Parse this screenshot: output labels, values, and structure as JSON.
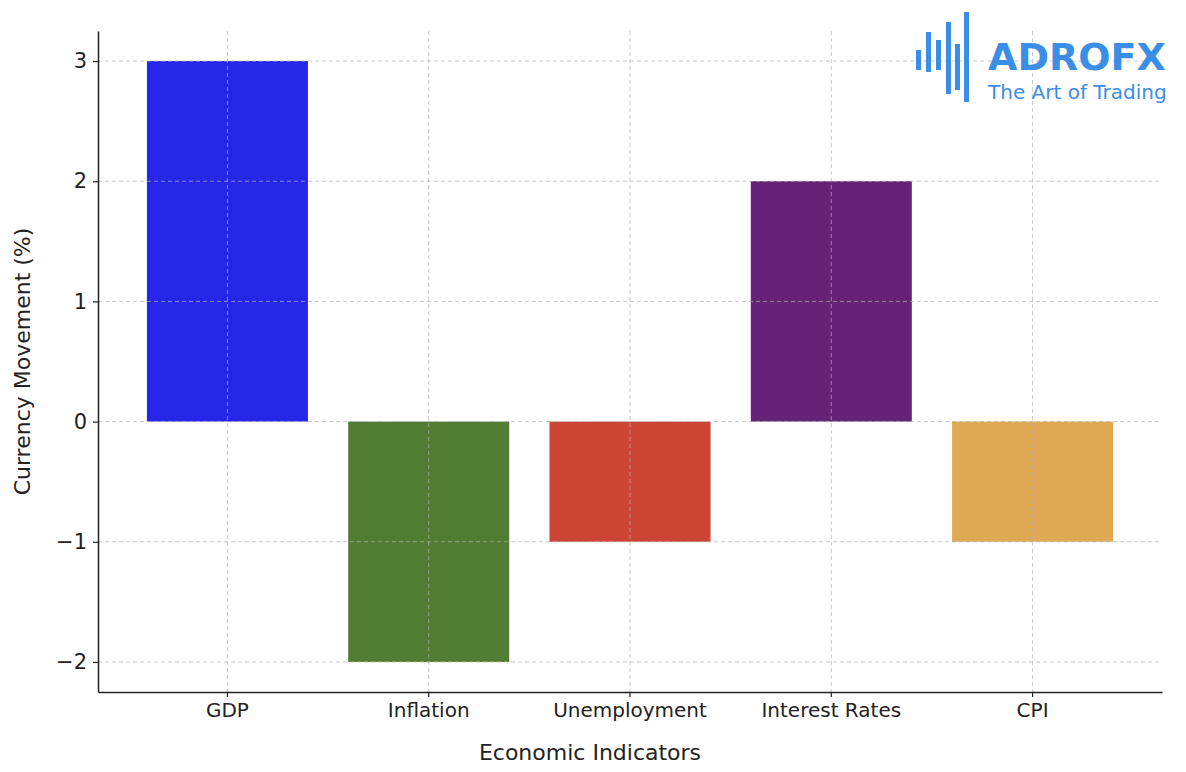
{
  "chart_data": {
    "type": "bar",
    "x_label": "Economic Indicators",
    "y_label": "Currency Movement (%)",
    "categories": [
      "GDP",
      "Inflation",
      "Unemployment",
      "Interest Rates",
      "CPI"
    ],
    "values": [
      3,
      -2,
      -1,
      2,
      -1
    ],
    "colors": [
      "#2626e8",
      "#507d32",
      "#cc4433",
      "#662277",
      "#e0aa55"
    ],
    "ylim": [
      -2.25,
      3.25
    ],
    "yticks": [
      {
        "value": -2,
        "label": "−2"
      },
      {
        "value": -1,
        "label": "−1"
      },
      0,
      1,
      2,
      3
    ],
    "grid": true,
    "annotations": [
      "ADROFX",
      "The Art of Trading"
    ]
  }
}
